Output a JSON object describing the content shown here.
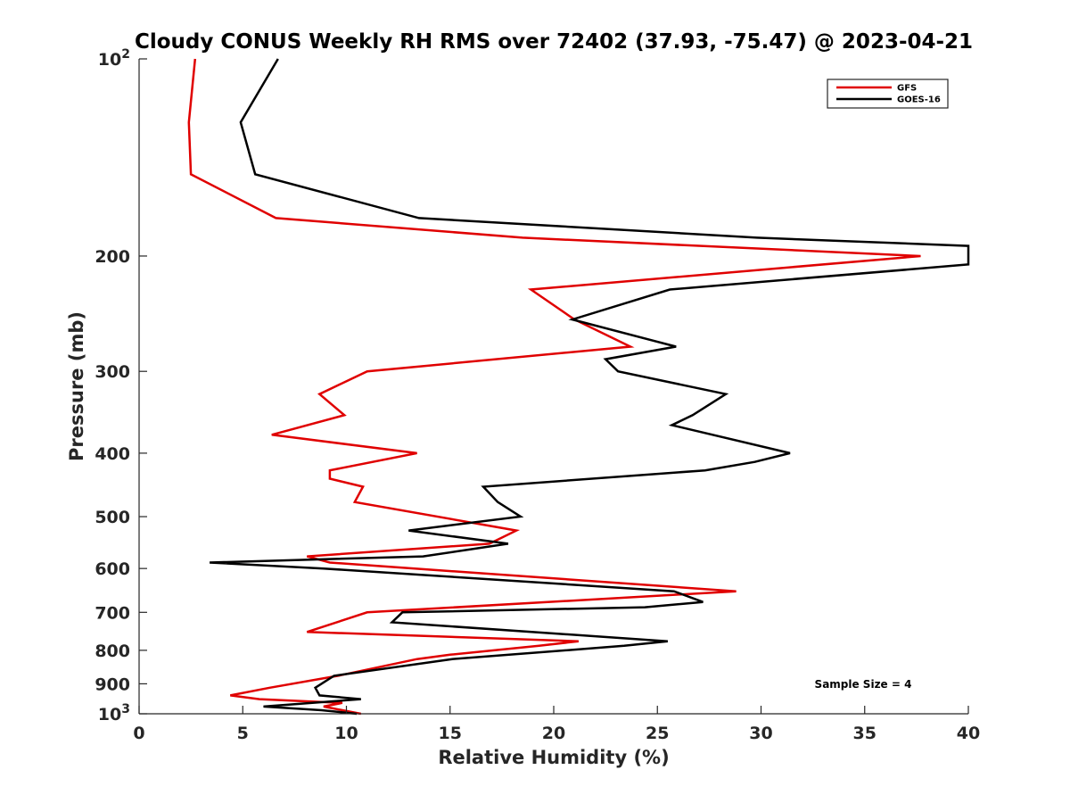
{
  "chart_data": {
    "type": "line",
    "title": "Cloudy CONUS Weekly RH RMS over 72402 (37.93, -75.47) @ 2023-04-21",
    "xlabel": "Relative Humidity (%)",
    "ylabel": "Pressure (mb)",
    "xlim": [
      0,
      40
    ],
    "ylim": [
      100,
      1000
    ],
    "y_scale": "log",
    "y_reversed": true,
    "grid": false,
    "legend_position": "top-right",
    "x_ticks": [
      "0",
      "5",
      "10",
      "15",
      "20",
      "25",
      "30",
      "35",
      "40"
    ],
    "y_ticks": [
      {
        "value": 100,
        "base": "10",
        "exp": "2"
      },
      {
        "value": 200,
        "label": "200"
      },
      {
        "value": 300,
        "label": "300"
      },
      {
        "value": 400,
        "label": "400"
      },
      {
        "value": 500,
        "label": "500"
      },
      {
        "value": 600,
        "label": "600"
      },
      {
        "value": 700,
        "label": "700"
      },
      {
        "value": 800,
        "label": "800"
      },
      {
        "value": 900,
        "label": "900"
      },
      {
        "value": 1000,
        "base": "10",
        "exp": "3"
      }
    ],
    "series": [
      {
        "name": "GFS",
        "color": "#e00000",
        "points": [
          [
            2.7,
            100
          ],
          [
            2.4,
            125
          ],
          [
            2.5,
            150
          ],
          [
            6.6,
            175
          ],
          [
            18.5,
            187.5
          ],
          [
            37.7,
            200
          ],
          [
            18.9,
            225
          ],
          [
            21,
            250
          ],
          [
            23.7,
            275
          ],
          [
            11,
            300
          ],
          [
            8.7,
            325
          ],
          [
            9.9,
            350
          ],
          [
            6.4,
            375
          ],
          [
            13.4,
            400
          ],
          [
            9.2,
            425
          ],
          [
            9.2,
            437.5
          ],
          [
            10.8,
            450
          ],
          [
            10.4,
            475
          ],
          [
            18.2,
            525
          ],
          [
            16.9,
            550
          ],
          [
            8.1,
            575
          ],
          [
            9.2,
            587.5
          ],
          [
            28.8,
            650
          ],
          [
            11,
            700
          ],
          [
            8.1,
            750
          ],
          [
            21.2,
            775
          ],
          [
            19.3,
            787.5
          ],
          [
            15,
            812.5
          ],
          [
            13.4,
            825
          ],
          [
            9.6,
            875
          ],
          [
            6.3,
            912.5
          ],
          [
            4.4,
            937.5
          ],
          [
            5.8,
            950
          ],
          [
            9.8,
            962.5
          ],
          [
            8.9,
            975
          ],
          [
            10.7,
            1000
          ]
        ]
      },
      {
        "name": "GOES-16",
        "color": "#000000",
        "points": [
          [
            6.7,
            100
          ],
          [
            4.9,
            125
          ],
          [
            5.6,
            150
          ],
          [
            13.5,
            175
          ],
          [
            29.8,
            187.5
          ],
          [
            40,
            193
          ],
          [
            40,
            206
          ],
          [
            25.6,
            225
          ],
          [
            20.9,
            250
          ],
          [
            25.9,
            275
          ],
          [
            22.5,
            287.5
          ],
          [
            23.1,
            300
          ],
          [
            28.3,
            325
          ],
          [
            26.7,
            350
          ],
          [
            25.7,
            362.5
          ],
          [
            31.4,
            400
          ],
          [
            29.7,
            412.5
          ],
          [
            27.3,
            425
          ],
          [
            16.6,
            450
          ],
          [
            17.3,
            475
          ],
          [
            18.4,
            500
          ],
          [
            13,
            525
          ],
          [
            17.8,
            550
          ],
          [
            13.7,
            575
          ],
          [
            3.4,
            587.5
          ],
          [
            8.9,
            600
          ],
          [
            25.8,
            650
          ],
          [
            27.2,
            675
          ],
          [
            24.4,
            687.5
          ],
          [
            12.7,
            700
          ],
          [
            12.2,
            725
          ],
          [
            25.5,
            775
          ],
          [
            23.4,
            787.5
          ],
          [
            15.1,
            825
          ],
          [
            9.4,
            875
          ],
          [
            8.5,
            912.5
          ],
          [
            8.7,
            937.5
          ],
          [
            10.7,
            950
          ],
          [
            6,
            975
          ],
          [
            8.8,
            987.5
          ],
          [
            10.5,
            1000
          ]
        ]
      }
    ],
    "annotations": [
      "Sample Size = 4"
    ]
  }
}
